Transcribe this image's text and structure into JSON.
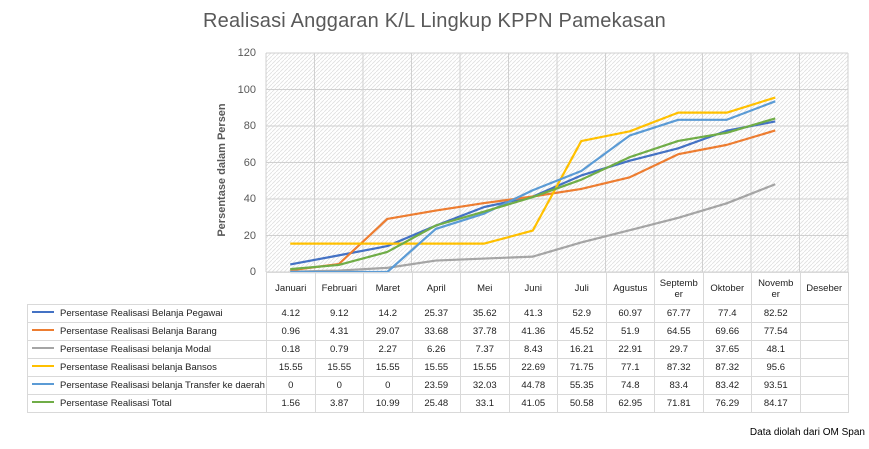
{
  "chart_data": {
    "type": "line",
    "title": "Realisasi Anggaran K/L Lingkup KPPN Pamekasan",
    "ylabel": "Persentase dalam Persen",
    "ylim": [
      0,
      120
    ],
    "yticks": [
      0,
      20,
      40,
      60,
      80,
      100,
      120
    ],
    "grid": true,
    "legend": "data-table",
    "categories": [
      "Januari",
      "Februari",
      "Maret",
      "April",
      "Mei",
      "Juni",
      "Juli",
      "Agustus",
      "September",
      "Oktober",
      "November",
      "Deseber"
    ],
    "category_labels": [
      "Januari",
      "Februari",
      "Maret",
      "April",
      "Mei",
      "Juni",
      "Juli",
      "Agustus",
      "Septemb\ner",
      "Oktober",
      "Novemb\ner",
      "Deseber"
    ],
    "series": [
      {
        "name": "Persentase Realisasi Belanja Pegawai",
        "color": "#4472c4",
        "values": [
          4.12,
          9.12,
          14.2,
          25.37,
          35.62,
          41.3,
          52.9,
          60.97,
          67.77,
          77.4,
          82.52,
          null
        ]
      },
      {
        "name": "Persentase Realisasi Belanja Barang",
        "color": "#ed7d31",
        "values": [
          0.96,
          4.31,
          29.07,
          33.68,
          37.78,
          41.36,
          45.52,
          51.9,
          64.55,
          69.66,
          77.54,
          null
        ]
      },
      {
        "name": "Persentase Realisasi belanja Modal",
        "color": "#a5a5a5",
        "values": [
          0.18,
          0.79,
          2.27,
          6.26,
          7.37,
          8.43,
          16.21,
          22.91,
          29.7,
          37.65,
          48.1,
          null
        ]
      },
      {
        "name": "Persentase Realisasi belanja Bansos",
        "color": "#ffc000",
        "values": [
          15.55,
          15.55,
          15.55,
          15.55,
          15.55,
          22.69,
          71.75,
          77.1,
          87.32,
          87.32,
          95.6,
          null
        ]
      },
      {
        "name": "Persentase Realisasi belanja Transfer ke daerah",
        "color": "#5b9bd5",
        "values": [
          0,
          0,
          0,
          23.59,
          32.03,
          44.78,
          55.35,
          74.8,
          83.4,
          83.42,
          93.51,
          null
        ]
      },
      {
        "name": "Persentase Realisasi Total",
        "color": "#70ad47",
        "values": [
          1.56,
          3.87,
          10.99,
          25.48,
          33.1,
          41.05,
          50.58,
          62.95,
          71.81,
          76.29,
          84.17,
          null
        ]
      }
    ]
  },
  "source_note": "Data diolah dari OM Span"
}
